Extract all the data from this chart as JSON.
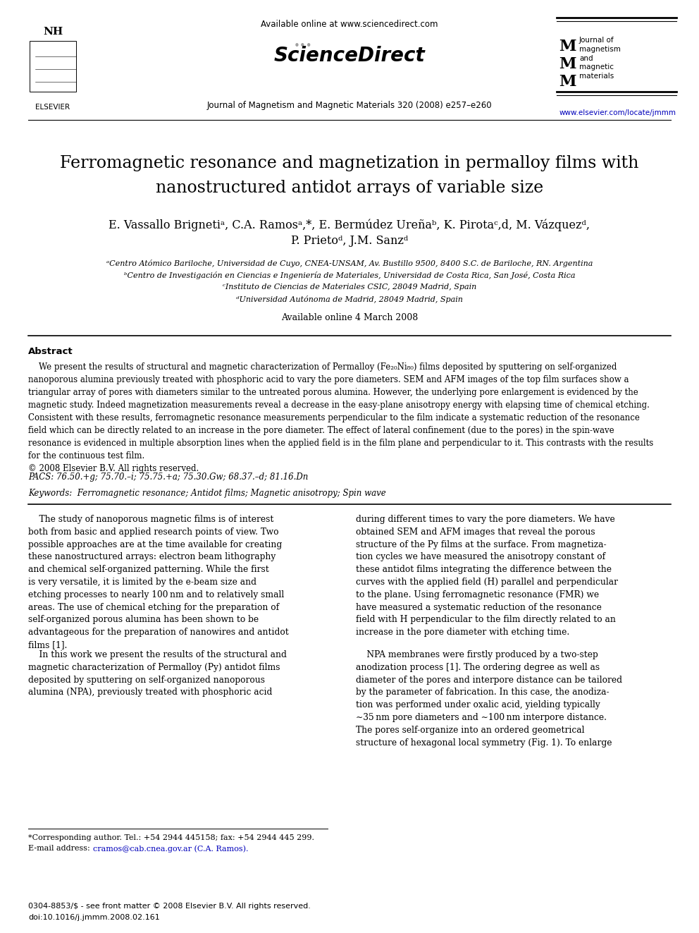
{
  "background_color": "#ffffff",
  "page_width": 9.92,
  "page_height": 13.23,
  "dpi": 100,
  "header": {
    "available_online": "Available online at www.sciencedirect.com",
    "sciencedirect": "ScienceDirect",
    "journal_line": "Journal of Magnetism and Magnetic Materials 320 (2008) e257–e260",
    "elsevier": "ELSEVIER",
    "url": "www.elsevier.com/locate/jmmm",
    "jmm_text": "Journal of\nmagnetism\nand\nmagnetic\nmaterials"
  },
  "title_line1": "Ferromagnetic resonance and magnetization in permalloy films with",
  "title_line2": "nanostructured antidot arrays of variable size",
  "author_line1": "E. Vassallo Brignetiᵃ, C.A. Ramosᵃ,*, E. Bermúdez Ureñaᵇ, K. Pirotaᶜ,d, M. Vázquezᵈ,",
  "author_line2": "P. Prietoᵈ, J.M. Sanzᵈ",
  "aff_a": "ᵃCentro Atómico Bariloche, Universidad de Cuyo, CNEA-UNSAM, Av. Bustillo 9500, 8400 S.C. de Bariloche, RN. Argentina",
  "aff_b": "ᵇCentro de Investigación en Ciencias e Ingeniería de Materiales, Universidad de Costa Rica, San José, Costa Rica",
  "aff_c": "ᶜInstituto de Ciencias de Materiales CSIC, 28049 Madrid, Spain",
  "aff_d": "ᵈUniversidad Autónoma de Madrid, 28049 Madrid, Spain",
  "online_date": "Available online 4 March 2008",
  "abstract_label": "Abstract",
  "abstract_body": "    We present the results of structural and magnetic characterization of Permalloy (Fe₂₀Ni₈₀) films deposited by sputtering on self-organized nanoporous alumina previously treated with phosphoric acid to vary the pore diameters. SEM and AFM images of the top film surfaces show a triangular array of pores with diameters similar to the untreated porous alumina. However, the underlying pore enlargement is evidenced by the magnetic study. Indeed magnetization measurements reveal a decrease in the easy-plane anisotropy energy with elapsing time of chemical etching. Consistent with these results, ferromagnetic resonance measurements perpendicular to the film indicate a systematic reduction of the resonance field which can be directly related to an increase in the pore diameter. The effect of lateral confinement (due to the pores) in the spin-wave resonance is evidenced in multiple absorption lines when the applied field is in the film plane and perpendicular to it. This contrasts with the results for the continuous test film.\n© 2008 Elsevier B.V. All rights reserved.",
  "pacs_text": "PACS: 76.50.+g; 75.70.–i; 75.75.+a; 75.30.Gw; 68.37.–d; 81.16.Dn",
  "keywords_text": "Keywords:  Ferromagnetic resonance; Antidot films; Magnetic anisotropy; Spin wave",
  "col1_p1": "    The study of nanoporous magnetic films is of interest\nboth from basic and applied research points of view. Two\npossible approaches are at the time available for creating\nthese nanostructured arrays: electron beam lithography\nand chemical self-organized patterning. While the first\nis very versatile, it is limited by the e-beam size and\netching processes to nearly 100 nm and to relatively small\nareas. The use of chemical etching for the preparation of\nself-organized porous alumina has been shown to be\nadvantageous for the preparation of nanowires and antidot\nfilms [1].",
  "col1_p2": "    In this work we present the results of the structural and\nmagnetic characterization of Permalloy (Py) antidot films\ndeposited by sputtering on self-organized nanoporous\nalumina (NPA), previously treated with phosphoric acid",
  "col2_p1": "during different times to vary the pore diameters. We have\nobtained SEM and AFM images that reveal the porous\nstructure of the Py films at the surface. From magnetiza-\ntion cycles we have measured the anisotropy constant of\nthese antidot films integrating the difference between the\ncurves with the applied field (H) parallel and perpendicular\nto the plane. Using ferromagnetic resonance (FMR) we\nhave measured a systematic reduction of the resonance\nfield with H perpendicular to the film directly related to an\nincrease in the pore diameter with etching time.",
  "col2_p2": "    NPA membranes were firstly produced by a two-step\nanodization process [1]. The ordering degree as well as\ndiameter of the pores and interpore distance can be tailored\nby the parameter of fabrication. In this case, the anodiza-\ntion was performed under oxalic acid, yielding typically\n∼35 nm pore diameters and ∼100 nm interpore distance.\nThe pores self-organize into an ordered geometrical\nstructure of hexagonal local symmetry (Fig. 1). To enlarge",
  "footnote_star": "*Corresponding author. Tel.: +54 2944 445158; fax: +54 2944 445 299.",
  "footnote_email_label": "E-mail address: ",
  "footnote_email": "cramos@cab.cnea.gov.ar (C.A. Ramos).",
  "footer_line1": "0304-8853/$ - see front matter © 2008 Elsevier B.V. All rights reserved.",
  "footer_line2": "doi:10.1016/j.jmmm.2008.02.161"
}
